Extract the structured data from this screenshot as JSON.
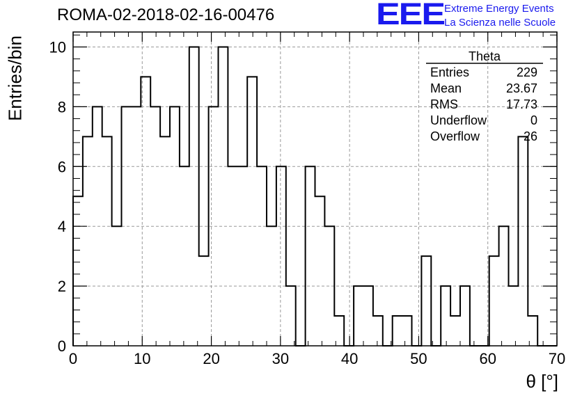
{
  "title": "ROMA-02-2018-02-16-00476",
  "logo": {
    "mark": "EEE",
    "line1": "Extreme Energy Events",
    "line2": "La Scienza nelle Scuole"
  },
  "stats_box": {
    "name": "Theta",
    "rows": [
      {
        "label": "Entries",
        "value": "229"
      },
      {
        "label": "Mean",
        "value": "23.67"
      },
      {
        "label": "RMS",
        "value": "17.73"
      },
      {
        "label": "Underflow",
        "value": "0"
      },
      {
        "label": "Overflow",
        "value": "26"
      }
    ]
  },
  "chart_data": {
    "type": "bar",
    "style": "step-histogram",
    "title": "ROMA-02-2018-02-16-00476",
    "xlabel": "θ [°]",
    "ylabel": "Entries/bin",
    "xlim": [
      0,
      70
    ],
    "ylim": [
      0,
      10.5
    ],
    "grid": true,
    "bin_width": 1.4,
    "xticks": [
      "0",
      "10",
      "20",
      "30",
      "40",
      "50",
      "60",
      "70"
    ],
    "yticks": [
      "0",
      "2",
      "4",
      "6",
      "8",
      "10"
    ],
    "values": [
      5,
      7,
      8,
      7,
      4,
      8,
      8,
      9,
      8,
      7,
      8,
      6,
      10,
      3,
      8,
      10,
      6,
      6,
      9,
      6,
      4,
      6,
      2,
      0,
      6,
      5,
      4,
      1,
      0,
      2,
      2,
      1,
      0,
      1,
      1,
      0,
      3,
      0,
      2,
      1,
      2,
      0,
      0,
      3,
      4,
      2,
      7,
      1,
      0,
      0
    ]
  }
}
